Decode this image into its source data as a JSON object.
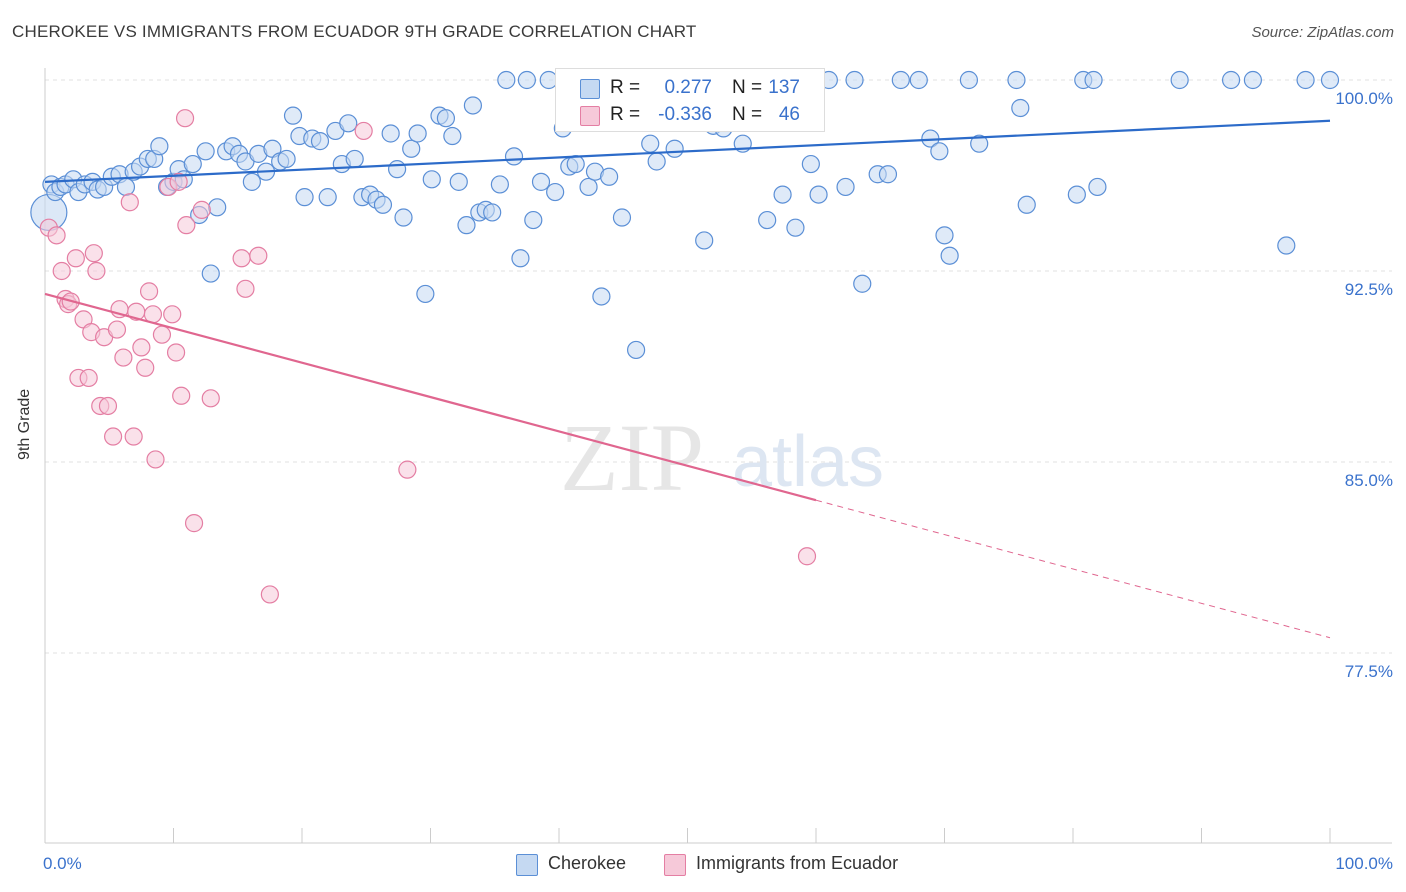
{
  "title": "CHEROKEE VS IMMIGRANTS FROM ECUADOR 9TH GRADE CORRELATION CHART",
  "source": "Source: ZipAtlas.com",
  "watermark": {
    "zip": "ZIP",
    "atlas": "atlas"
  },
  "colors": {
    "blue": "#5b8fd6",
    "blue_fill": "#c5d9f2",
    "blue_line": "#2c6bc9",
    "blue_text": "#3a72cc",
    "pink": "#e47ea3",
    "pink_fill": "#f6c9d9",
    "pink_line": "#e0668f"
  },
  "legend": {
    "r_label": "R =",
    "n_label": "N =",
    "rows": [
      {
        "series": "Cherokee",
        "r": "0.277",
        "n": "137"
      },
      {
        "series": "Immigrants from Ecuador",
        "r": "-0.336",
        "n": "46"
      }
    ]
  },
  "chart_data": {
    "type": "scatter",
    "title": "CHEROKEE VS IMMIGRANTS FROM ECUADOR 9TH GRADE CORRELATION CHART",
    "xlabel": "",
    "ylabel": "9th Grade",
    "xlim": [
      0,
      100
    ],
    "ylim": [
      70.0,
      100.9
    ],
    "x_tick_labels": [
      "0.0%",
      "100.0%"
    ],
    "y_ticks": [
      100.0,
      92.5,
      85.0,
      77.5
    ],
    "y_tick_labels": [
      "100.0%",
      "92.5%",
      "85.0%",
      "77.5%"
    ],
    "grid": "horizontal dashed",
    "legend_placement": "bottom",
    "series": [
      {
        "name": "Cherokee",
        "color": "#5b8fd6",
        "trend": {
          "x": [
            0,
            100
          ],
          "y": [
            96.0,
            98.4
          ]
        },
        "points": [
          [
            0.3,
            94.8
          ],
          [
            0.5,
            95.9
          ],
          [
            0.8,
            95.6
          ],
          [
            1.2,
            95.8
          ],
          [
            1.6,
            95.9
          ],
          [
            2.2,
            96.1
          ],
          [
            2.6,
            95.6
          ],
          [
            3.1,
            95.9
          ],
          [
            3.7,
            96.0
          ],
          [
            4.1,
            95.7
          ],
          [
            4.6,
            95.8
          ],
          [
            5.2,
            96.2
          ],
          [
            5.8,
            96.3
          ],
          [
            6.3,
            95.8
          ],
          [
            6.9,
            96.4
          ],
          [
            7.4,
            96.6
          ],
          [
            8.0,
            96.9
          ],
          [
            8.5,
            96.9
          ],
          [
            8.9,
            97.4
          ],
          [
            9.5,
            95.8
          ],
          [
            10.0,
            96.0
          ],
          [
            10.4,
            96.5
          ],
          [
            10.8,
            96.1
          ],
          [
            11.5,
            96.7
          ],
          [
            12.0,
            94.7
          ],
          [
            12.5,
            97.2
          ],
          [
            12.9,
            92.4
          ],
          [
            13.4,
            95.0
          ],
          [
            14.1,
            97.2
          ],
          [
            14.6,
            97.4
          ],
          [
            15.1,
            97.1
          ],
          [
            15.6,
            96.8
          ],
          [
            16.1,
            96.0
          ],
          [
            16.6,
            97.1
          ],
          [
            17.2,
            96.4
          ],
          [
            17.7,
            97.3
          ],
          [
            18.3,
            96.8
          ],
          [
            18.8,
            96.9
          ],
          [
            19.3,
            98.6
          ],
          [
            19.8,
            97.8
          ],
          [
            20.2,
            95.4
          ],
          [
            20.8,
            97.7
          ],
          [
            21.4,
            97.6
          ],
          [
            22.0,
            95.4
          ],
          [
            22.6,
            98.0
          ],
          [
            23.1,
            96.7
          ],
          [
            23.6,
            98.3
          ],
          [
            24.1,
            96.9
          ],
          [
            24.7,
            95.4
          ],
          [
            25.3,
            95.5
          ],
          [
            25.8,
            95.3
          ],
          [
            26.3,
            95.1
          ],
          [
            26.9,
            97.9
          ],
          [
            27.4,
            96.5
          ],
          [
            27.9,
            94.6
          ],
          [
            28.5,
            97.3
          ],
          [
            29.0,
            97.9
          ],
          [
            29.6,
            91.6
          ],
          [
            30.1,
            96.1
          ],
          [
            30.7,
            98.6
          ],
          [
            31.2,
            98.5
          ],
          [
            31.7,
            97.8
          ],
          [
            32.2,
            96.0
          ],
          [
            32.8,
            94.3
          ],
          [
            33.3,
            99.0
          ],
          [
            33.8,
            94.8
          ],
          [
            34.3,
            94.9
          ],
          [
            34.8,
            94.8
          ],
          [
            35.4,
            95.9
          ],
          [
            35.9,
            100.0
          ],
          [
            36.5,
            97.0
          ],
          [
            37.0,
            93.0
          ],
          [
            37.5,
            100.0
          ],
          [
            38.0,
            94.5
          ],
          [
            38.6,
            96.0
          ],
          [
            39.2,
            100.0
          ],
          [
            39.7,
            95.6
          ],
          [
            40.3,
            98.1
          ],
          [
            40.8,
            96.6
          ],
          [
            41.3,
            96.7
          ],
          [
            41.8,
            100.0
          ],
          [
            42.3,
            95.8
          ],
          [
            42.8,
            96.4
          ],
          [
            43.3,
            91.5
          ],
          [
            43.9,
            96.2
          ],
          [
            44.4,
            100.0
          ],
          [
            44.9,
            94.6
          ],
          [
            45.5,
            100.0
          ],
          [
            46.0,
            89.4
          ],
          [
            46.6,
            98.5
          ],
          [
            47.1,
            97.5
          ],
          [
            47.6,
            96.8
          ],
          [
            48.1,
            100.0
          ],
          [
            49.0,
            97.3
          ],
          [
            50.2,
            100.0
          ],
          [
            51.3,
            93.7
          ],
          [
            52.0,
            98.2
          ],
          [
            52.8,
            98.1
          ],
          [
            53.5,
            100.0
          ],
          [
            54.3,
            97.5
          ],
          [
            55.0,
            100.0
          ],
          [
            56.2,
            94.5
          ],
          [
            57.4,
            95.5
          ],
          [
            58.4,
            94.2
          ],
          [
            59.6,
            96.7
          ],
          [
            60.2,
            95.5
          ],
          [
            61.0,
            100.0
          ],
          [
            62.3,
            95.8
          ],
          [
            63.0,
            100.0
          ],
          [
            63.6,
            92.0
          ],
          [
            64.8,
            96.3
          ],
          [
            65.6,
            96.3
          ],
          [
            66.6,
            100.0
          ],
          [
            68.0,
            100.0
          ],
          [
            68.9,
            97.7
          ],
          [
            69.6,
            97.2
          ],
          [
            70.0,
            93.9
          ],
          [
            70.4,
            93.1
          ],
          [
            71.9,
            100.0
          ],
          [
            72.7,
            97.5
          ],
          [
            75.6,
            100.0
          ],
          [
            75.9,
            98.9
          ],
          [
            76.4,
            95.1
          ],
          [
            80.3,
            95.5
          ],
          [
            80.8,
            100.0
          ],
          [
            81.6,
            100.0
          ],
          [
            81.9,
            95.8
          ],
          [
            88.3,
            100.0
          ],
          [
            92.3,
            100.0
          ],
          [
            94.0,
            100.0
          ],
          [
            96.6,
            93.5
          ],
          [
            98.1,
            100.0
          ],
          [
            100.0,
            100.0
          ]
        ]
      },
      {
        "name": "Immigrants from Ecuador",
        "color": "#e47ea3",
        "trend": {
          "x": [
            0,
            60
          ],
          "y": [
            91.6,
            83.5
          ]
        },
        "trend_extension": {
          "x": [
            60,
            100
          ],
          "y": [
            83.5,
            78.1
          ]
        },
        "points": [
          [
            0.3,
            94.2
          ],
          [
            0.9,
            93.9
          ],
          [
            1.3,
            92.5
          ],
          [
            1.6,
            91.4
          ],
          [
            1.8,
            91.2
          ],
          [
            2.0,
            91.3
          ],
          [
            2.4,
            93.0
          ],
          [
            2.6,
            88.3
          ],
          [
            3.0,
            90.6
          ],
          [
            3.4,
            88.3
          ],
          [
            3.6,
            90.1
          ],
          [
            3.8,
            93.2
          ],
          [
            4.0,
            92.5
          ],
          [
            4.3,
            87.2
          ],
          [
            4.6,
            89.9
          ],
          [
            4.9,
            87.2
          ],
          [
            5.3,
            86.0
          ],
          [
            5.6,
            90.2
          ],
          [
            5.8,
            91.0
          ],
          [
            6.1,
            89.1
          ],
          [
            6.6,
            95.2
          ],
          [
            6.9,
            86.0
          ],
          [
            7.1,
            90.9
          ],
          [
            7.5,
            89.5
          ],
          [
            7.8,
            88.7
          ],
          [
            8.1,
            91.7
          ],
          [
            8.4,
            90.8
          ],
          [
            8.6,
            85.1
          ],
          [
            9.1,
            90.0
          ],
          [
            9.6,
            95.8
          ],
          [
            9.9,
            90.8
          ],
          [
            10.2,
            89.3
          ],
          [
            10.4,
            96.0
          ],
          [
            10.6,
            87.6
          ],
          [
            10.9,
            98.5
          ],
          [
            11.0,
            94.3
          ],
          [
            11.6,
            82.6
          ],
          [
            12.2,
            94.9
          ],
          [
            12.9,
            87.5
          ],
          [
            15.3,
            93.0
          ],
          [
            15.6,
            91.8
          ],
          [
            16.6,
            93.1
          ],
          [
            17.5,
            79.8
          ],
          [
            24.8,
            98.0
          ],
          [
            28.2,
            84.7
          ],
          [
            59.3,
            81.3
          ]
        ]
      }
    ]
  }
}
